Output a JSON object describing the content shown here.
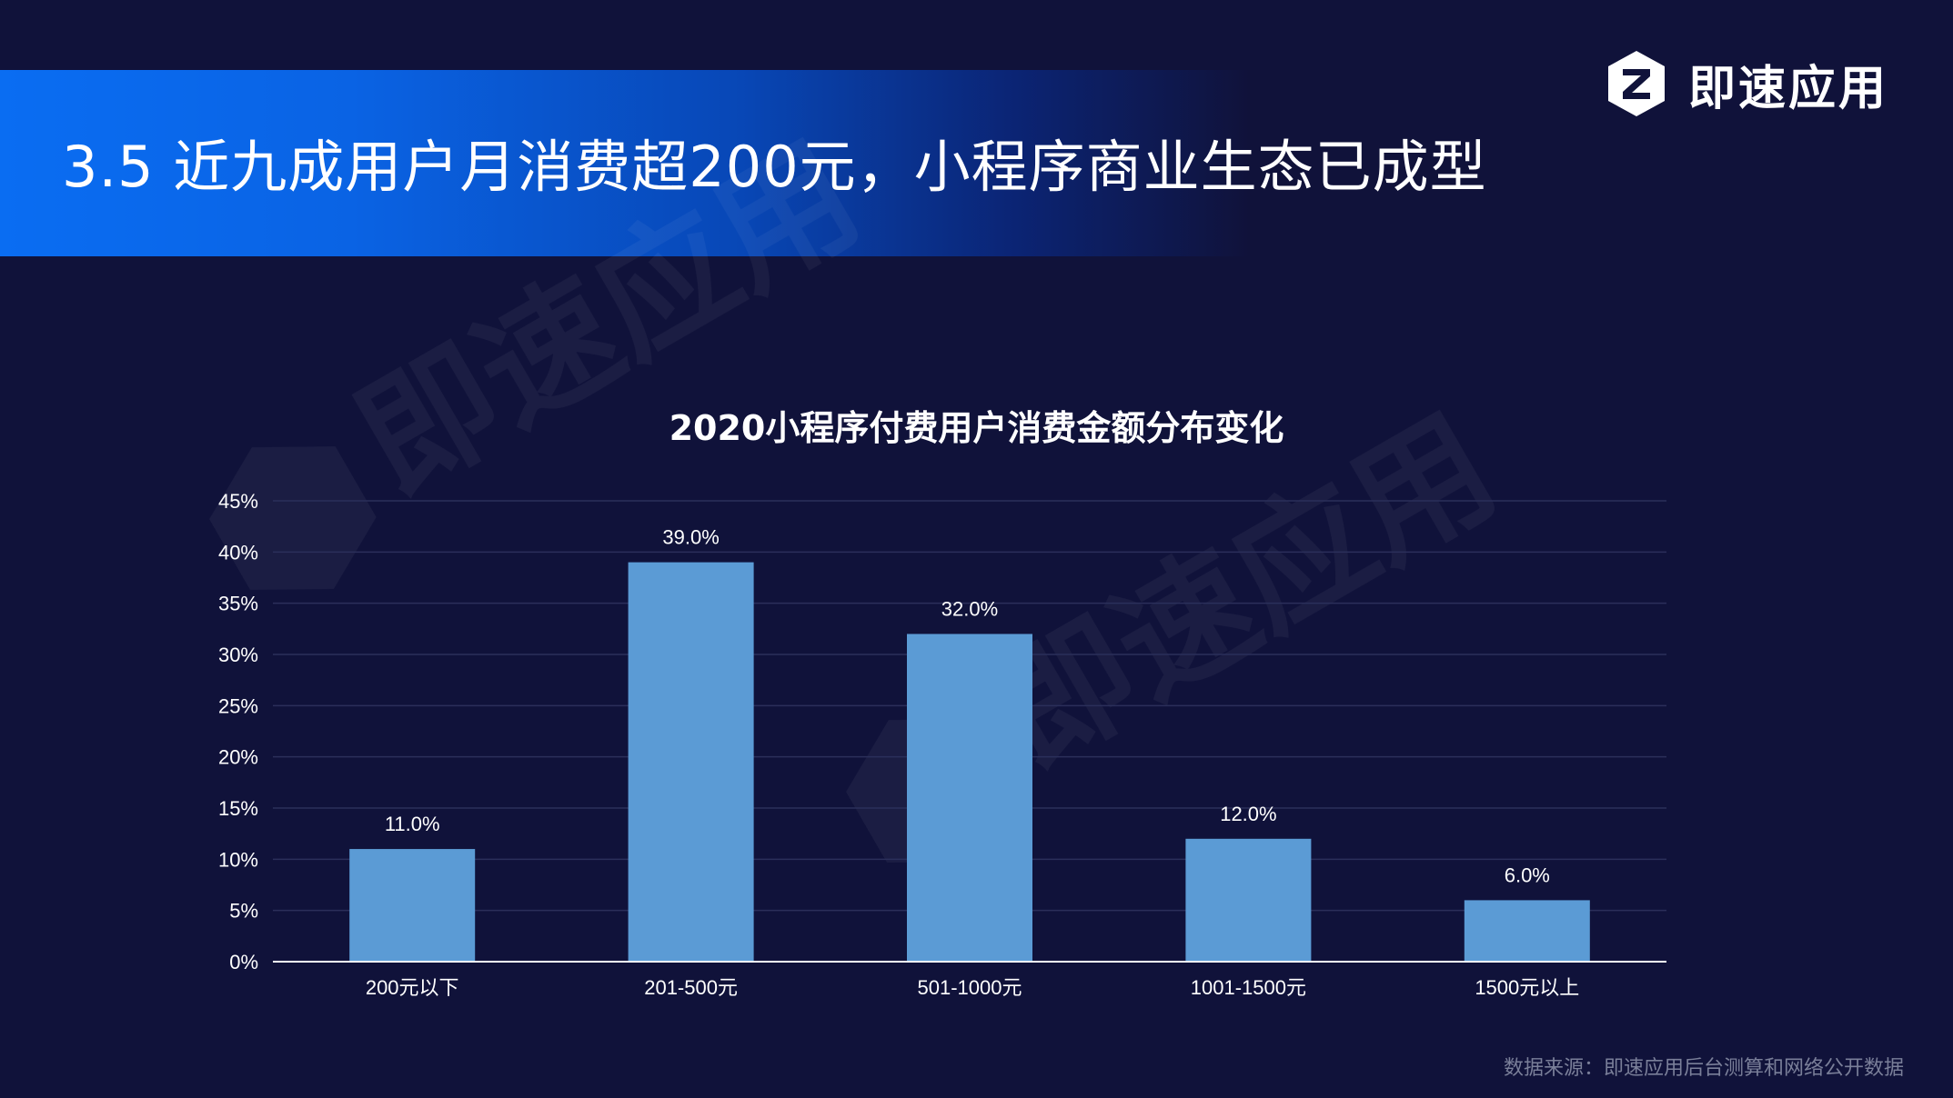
{
  "header": {
    "title": "3.5 近九成用户月消费超200元，小程序商业生态已成型"
  },
  "brand": {
    "name": "即速应用",
    "icon": "brand-logo-icon"
  },
  "watermark_text": "即速应用",
  "chart_data": {
    "type": "bar",
    "title": "2020小程序付费用户消费金额分布变化",
    "categories": [
      "200元以下",
      "201-500元",
      "501-1000元",
      "1001-1500元",
      "1500元以上"
    ],
    "values": [
      11.0,
      39.0,
      32.0,
      12.0,
      6.0
    ],
    "value_labels": [
      "11.0%",
      "39.0%",
      "32.0%",
      "12.0%",
      "6.0%"
    ],
    "y_ticks": [
      "0%",
      "5%",
      "10%",
      "15%",
      "20%",
      "25%",
      "30%",
      "35%",
      "40%",
      "45%"
    ],
    "ylim": [
      0,
      45
    ],
    "grid": true,
    "legend": "none",
    "bar_color": "#5b9bd5"
  },
  "source": {
    "text": "数据来源：即速应用后台测算和网络公开数据"
  },
  "colors": {
    "background": "#10123a",
    "header_blue": "#0a6df2",
    "bar": "#5b9bd5",
    "gridline": "#2b2f5a",
    "axis_text": "#ffffff"
  }
}
